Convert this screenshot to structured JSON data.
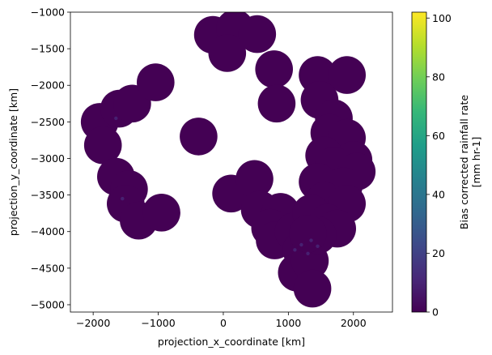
{
  "chart_data": {
    "type": "heatmap",
    "xlabel": "projection_x_coordinate [km]",
    "ylabel": "projection_y_coordinate [km]",
    "colorbar_label": [
      "Bias corrected rainfall rate",
      "[mm hr-1]"
    ],
    "xlim": [
      -2350,
      2600
    ],
    "ylim": [
      -5100,
      -1000
    ],
    "xticks": [
      -2000,
      -1000,
      0,
      1000,
      2000
    ],
    "xtick_labels": [
      "−2000",
      "−1000",
      "0",
      "1000",
      "2000"
    ],
    "yticks": [
      -1000,
      -1500,
      -2000,
      -2500,
      -3000,
      -3500,
      -4000,
      -4500,
      -5000
    ],
    "ytick_labels": [
      "−1000",
      "−1500",
      "−2000",
      "−2500",
      "−3000",
      "−3500",
      "−4000",
      "−4500",
      "−5000"
    ],
    "colorbar_ticks": [
      0,
      20,
      40,
      60,
      80,
      100
    ],
    "colorbar_tick_labels": [
      "0",
      "20",
      "40",
      "60",
      "80",
      "100"
    ],
    "colorbar_range": [
      0,
      102
    ],
    "colormap": "viridis",
    "colormap_stops": [
      "#440154",
      "#482878",
      "#3e4989",
      "#31688e",
      "#26828e",
      "#1f9e89",
      "#35b779",
      "#6ece58",
      "#b5de2b",
      "#fde725"
    ],
    "background_value_color": "#440154",
    "grid": false,
    "radar_coverage_disks_km": [
      {
        "x": -1900,
        "y": -2500
      },
      {
        "x": -1600,
        "y": -2320
      },
      {
        "x": -1400,
        "y": -2250
      },
      {
        "x": -1040,
        "y": -1960
      },
      {
        "x": -1850,
        "y": -2820
      },
      {
        "x": -1650,
        "y": -3250
      },
      {
        "x": -1450,
        "y": -3420
      },
      {
        "x": -1500,
        "y": -3620
      },
      {
        "x": -1300,
        "y": -3850
      },
      {
        "x": -950,
        "y": -3740
      },
      {
        "x": -380,
        "y": -2700
      },
      {
        "x": -160,
        "y": -1310
      },
      {
        "x": 180,
        "y": -1220
      },
      {
        "x": 520,
        "y": -1300
      },
      {
        "x": 60,
        "y": -1560
      },
      {
        "x": 780,
        "y": -1780
      },
      {
        "x": 820,
        "y": -2250
      },
      {
        "x": 120,
        "y": -3480
      },
      {
        "x": 480,
        "y": -3280
      },
      {
        "x": 560,
        "y": -3700
      },
      {
        "x": 880,
        "y": -3730
      },
      {
        "x": 720,
        "y": -3950
      },
      {
        "x": 790,
        "y": -4120
      },
      {
        "x": 1080,
        "y": -4000
      },
      {
        "x": 1200,
        "y": -4250
      },
      {
        "x": 1130,
        "y": -4560
      },
      {
        "x": 1330,
        "y": -4400
      },
      {
        "x": 1370,
        "y": -4780
      },
      {
        "x": 1450,
        "y": -1860
      },
      {
        "x": 1900,
        "y": -1860
      },
      {
        "x": 1480,
        "y": -2200
      },
      {
        "x": 1700,
        "y": -2450
      },
      {
        "x": 1630,
        "y": -2650
      },
      {
        "x": 1900,
        "y": -2720
      },
      {
        "x": 1550,
        "y": -2960
      },
      {
        "x": 2000,
        "y": -3020
      },
      {
        "x": 1700,
        "y": -3100
      },
      {
        "x": 2050,
        "y": -3180
      },
      {
        "x": 1450,
        "y": -3320
      },
      {
        "x": 1850,
        "y": -3380
      },
      {
        "x": 1550,
        "y": -3580
      },
      {
        "x": 1900,
        "y": -3620
      },
      {
        "x": 1350,
        "y": -3750
      },
      {
        "x": 1600,
        "y": -3880
      },
      {
        "x": 1750,
        "y": -3960
      },
      {
        "x": 1450,
        "y": -4050
      },
      {
        "x": 1300,
        "y": -4030
      }
    ]
  }
}
